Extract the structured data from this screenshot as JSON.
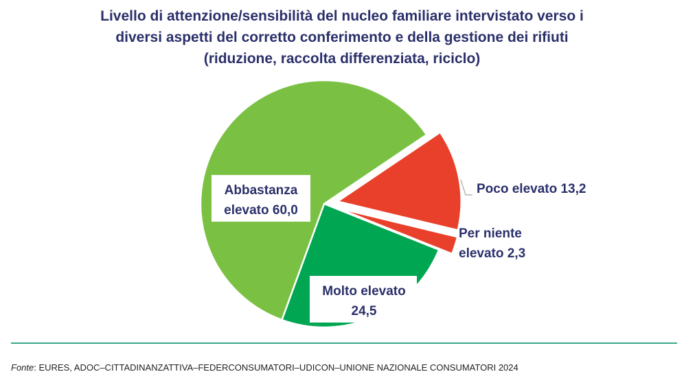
{
  "title_lines": [
    "Livello di attenzione/sensibilità del nucleo familiare intervistato verso i",
    "diversi aspetti del corretto conferimento e della gestione dei rifiuti",
    "(riduzione, raccolta differenziata, riciclo)"
  ],
  "chart_data": {
    "type": "pie",
    "slices": [
      {
        "label_lines": [
          "Poco elevato 13,2"
        ],
        "value": 13.2,
        "color": "#e8402b",
        "exploded": true,
        "label_box": false
      },
      {
        "label_lines": [
          "Per niente",
          "elevato 2,3"
        ],
        "value": 2.3,
        "color": "#e8402b",
        "exploded": true,
        "label_box": false
      },
      {
        "label_lines": [
          "Molto elevato",
          "24,5"
        ],
        "value": 24.5,
        "color": "#00a651",
        "exploded": false,
        "label_box": true
      },
      {
        "label_lines": [
          "Abbastanza",
          "elevato 60,0"
        ],
        "value": 60.0,
        "color": "#7ac143",
        "exploded": false,
        "label_box": true
      }
    ]
  },
  "source": {
    "label": "Fonte",
    "text": ": EURES, ADOC–CITTADINANZATTIVA–FEDERCONSUMATORI–UDICON–UNIONE NAZIONALE CONSUMATORI 2024"
  }
}
